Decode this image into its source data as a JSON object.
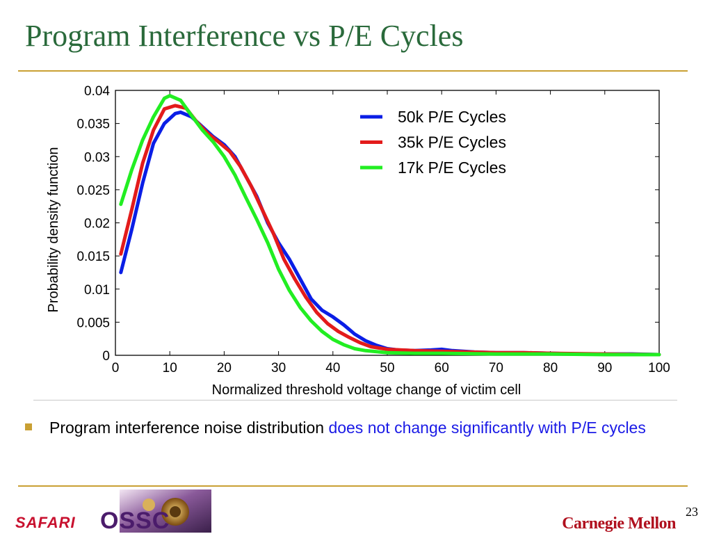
{
  "slide": {
    "title": "Program Interference vs P/E Cycles",
    "bullet": {
      "text_plain": "Program interference noise distribution",
      "text_highlight": "does not change significantly with P/E cycles"
    },
    "page_number": "23",
    "footer_logos": {
      "left": "SAFARI",
      "right": "Carnegie Mellon"
    },
    "colors": {
      "title": "#2a6a3b",
      "rule": "#c9a033",
      "highlight": "#1a1ae6"
    }
  },
  "chart_data": {
    "type": "line",
    "xlabel": "Normalized threshold voltage change of victim cell",
    "ylabel": "Probability density function",
    "xlim": [
      0,
      100
    ],
    "ylim": [
      0,
      0.04
    ],
    "xticks": [
      0,
      10,
      20,
      30,
      40,
      50,
      60,
      70,
      80,
      90,
      100
    ],
    "yticks": [
      0,
      0.005,
      0.01,
      0.015,
      0.02,
      0.025,
      0.03,
      0.035,
      0.04
    ],
    "ytick_labels": [
      "0",
      "0.005",
      "0.01",
      "0.015",
      "0.02",
      "0.025",
      "0.03",
      "0.035",
      "0.04"
    ],
    "grid": false,
    "legend_position": "top-right",
    "series": [
      {
        "name": "50k P/E Cycles",
        "color": "#0a1ee6",
        "points": [
          [
            1,
            0.0125
          ],
          [
            3,
            0.019
          ],
          [
            5,
            0.026
          ],
          [
            7,
            0.032
          ],
          [
            9,
            0.035
          ],
          [
            11,
            0.0365
          ],
          [
            12,
            0.0367
          ],
          [
            14,
            0.036
          ],
          [
            16,
            0.0345
          ],
          [
            18,
            0.033
          ],
          [
            20,
            0.0318
          ],
          [
            22,
            0.03
          ],
          [
            24,
            0.027
          ],
          [
            26,
            0.024
          ],
          [
            28,
            0.02
          ],
          [
            30,
            0.017
          ],
          [
            32,
            0.0145
          ],
          [
            34,
            0.0115
          ],
          [
            36,
            0.0085
          ],
          [
            38,
            0.0068
          ],
          [
            40,
            0.0058
          ],
          [
            42,
            0.0046
          ],
          [
            44,
            0.0032
          ],
          [
            46,
            0.0022
          ],
          [
            48,
            0.0015
          ],
          [
            50,
            0.001
          ],
          [
            52,
            0.0008
          ],
          [
            55,
            0.0007
          ],
          [
            58,
            0.0008
          ],
          [
            60,
            0.0009
          ],
          [
            62,
            0.0007
          ],
          [
            66,
            0.0005
          ],
          [
            70,
            0.0004
          ],
          [
            75,
            0.0004
          ],
          [
            80,
            0.0003
          ],
          [
            85,
            0.0002
          ],
          [
            90,
            0.0002
          ],
          [
            95,
            0.0002
          ],
          [
            100,
            0.0001
          ]
        ]
      },
      {
        "name": "35k P/E Cycles",
        "color": "#e31b1b",
        "points": [
          [
            1,
            0.0153
          ],
          [
            3,
            0.022
          ],
          [
            5,
            0.029
          ],
          [
            7,
            0.034
          ],
          [
            9,
            0.0372
          ],
          [
            11,
            0.0377
          ],
          [
            13,
            0.0373
          ],
          [
            15,
            0.0352
          ],
          [
            17,
            0.0335
          ],
          [
            19,
            0.0322
          ],
          [
            21,
            0.0308
          ],
          [
            23,
            0.0285
          ],
          [
            25,
            0.0255
          ],
          [
            27,
            0.022
          ],
          [
            29,
            0.0185
          ],
          [
            31,
            0.0145
          ],
          [
            33,
            0.0115
          ],
          [
            35,
            0.0088
          ],
          [
            37,
            0.0065
          ],
          [
            39,
            0.0048
          ],
          [
            41,
            0.0036
          ],
          [
            43,
            0.0027
          ],
          [
            45,
            0.0019
          ],
          [
            47,
            0.0013
          ],
          [
            50,
            0.0009
          ],
          [
            55,
            0.0007
          ],
          [
            60,
            0.0006
          ],
          [
            65,
            0.0005
          ],
          [
            70,
            0.0004
          ],
          [
            75,
            0.0004
          ],
          [
            80,
            0.0003
          ],
          [
            90,
            0.0002
          ],
          [
            100,
            0.0001
          ]
        ]
      },
      {
        "name": "17k P/E Cycles",
        "color": "#22ee22",
        "points": [
          [
            1,
            0.0228
          ],
          [
            3,
            0.028
          ],
          [
            5,
            0.0325
          ],
          [
            7,
            0.036
          ],
          [
            9,
            0.0388
          ],
          [
            10,
            0.0392
          ],
          [
            12,
            0.0385
          ],
          [
            14,
            0.0362
          ],
          [
            16,
            0.034
          ],
          [
            18,
            0.0322
          ],
          [
            20,
            0.03
          ],
          [
            22,
            0.0272
          ],
          [
            24,
            0.0238
          ],
          [
            26,
            0.0205
          ],
          [
            28,
            0.017
          ],
          [
            30,
            0.013
          ],
          [
            32,
            0.0098
          ],
          [
            34,
            0.0072
          ],
          [
            36,
            0.0052
          ],
          [
            38,
            0.0036
          ],
          [
            40,
            0.0024
          ],
          [
            42,
            0.0016
          ],
          [
            44,
            0.001
          ],
          [
            46,
            0.0007
          ],
          [
            50,
            0.0004
          ],
          [
            55,
            0.0003
          ],
          [
            60,
            0.0003
          ],
          [
            70,
            0.0002
          ],
          [
            80,
            0.0002
          ],
          [
            90,
            0.0001
          ],
          [
            100,
            0.0001
          ]
        ]
      }
    ]
  }
}
